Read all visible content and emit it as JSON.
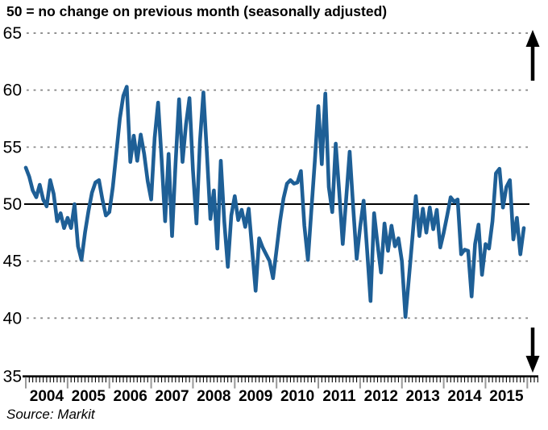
{
  "title": "50 = no change on previous month (seasonally adjusted)",
  "source": "Source: Markit",
  "colors": {
    "line": "#1E5F96",
    "grid_dotted": "#8A8A8A",
    "baseline": "#000000",
    "axis": "#000000",
    "year_tick": "#999999",
    "arrow": "#000000",
    "background": "#FFFFFF"
  },
  "chart_data": {
    "type": "line",
    "title": "50 = no change on previous month (seasonally adjusted)",
    "xlabel": "",
    "ylabel": "",
    "ylim": [
      35,
      65
    ],
    "yticks": [
      65,
      60,
      55,
      50,
      45,
      40,
      35
    ],
    "baseline": 50,
    "grid": "horizontal dotted lines at ticks, solid black line at 50",
    "legend": "none",
    "x_unit": "month",
    "x_range": "Jan 2004 - Dec 2015",
    "years": [
      "2004",
      "2005",
      "2006",
      "2007",
      "2008",
      "2009",
      "2010",
      "2011",
      "2012",
      "2013",
      "2014",
      "2015"
    ],
    "values": [
      53.2,
      52.4,
      51.2,
      50.6,
      51.7,
      50.4,
      49.8,
      52.1,
      50.9,
      48.5,
      49.2,
      47.9,
      48.8,
      47.9,
      50.0,
      46.3,
      45.1,
      47.5,
      49.4,
      51.0,
      51.9,
      52.1,
      50.4,
      49.0,
      49.3,
      51.5,
      54.5,
      57.5,
      59.5,
      60.3,
      53.7,
      56.0,
      53.8,
      56.1,
      54.4,
      52.0,
      50.4,
      55.8,
      58.9,
      54.0,
      48.5,
      54.4,
      47.2,
      53.5,
      59.2,
      53.7,
      57.0,
      59.3,
      53.0,
      48.3,
      55.5,
      59.8,
      54.5,
      48.7,
      51.2,
      46.1,
      53.8,
      48.5,
      44.5,
      49.0,
      50.7,
      48.6,
      49.5,
      48.0,
      49.6,
      46.0,
      42.4,
      47.0,
      46.2,
      45.6,
      45.0,
      43.5,
      46.0,
      48.5,
      50.5,
      51.8,
      52.1,
      51.8,
      51.9,
      52.9,
      48.1,
      45.1,
      49.5,
      53.8,
      58.6,
      53.5,
      59.7,
      51.5,
      49.3,
      55.3,
      51.0,
      46.5,
      50.5,
      54.6,
      49.8,
      45.2,
      48.0,
      50.3,
      46.0,
      41.5,
      49.2,
      46.5,
      44.0,
      48.3,
      45.9,
      48.1,
      46.3,
      47.0,
      45.0,
      40.1,
      43.5,
      47.0,
      50.7,
      47.2,
      49.6,
      47.5,
      49.7,
      47.8,
      49.5,
      46.2,
      47.5,
      49.0,
      50.6,
      50.2,
      50.4,
      45.6,
      46.0,
      45.9,
      41.9,
      46.5,
      48.2,
      43.8,
      46.5,
      46.1,
      48.5,
      52.7,
      53.1,
      49.7,
      51.5,
      52.1,
      46.9,
      48.8,
      45.6,
      47.9
    ],
    "annotations": {
      "up_arrow": "black arrow pointing up at top right",
      "down_arrow": "black arrow pointing down at bottom right"
    }
  }
}
